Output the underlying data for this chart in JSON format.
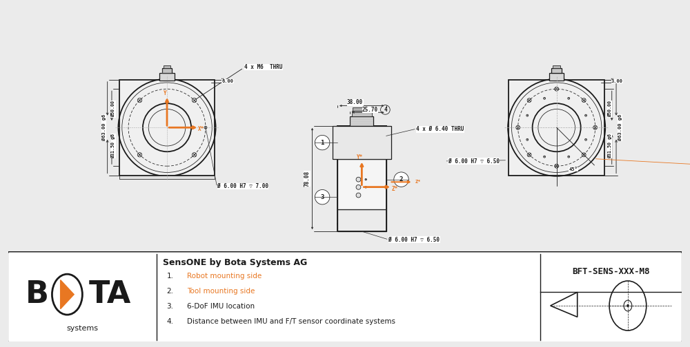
{
  "bg_color": "#ebebeb",
  "drawing_bg": "#ffffff",
  "title": "SensONE by Bota Systems AG",
  "part_number": "BFT-SENS-XXX-M8",
  "legend_items": [
    "Robot mounting side",
    "Tool mounting side",
    "6-DoF IMU location",
    "Distance between IMU and F/T sensor coordinate systems"
  ],
  "orange": "#E87722",
  "dark": "#1a1a1a",
  "gray": "#888888",
  "dim_color": "#2a2a2a"
}
